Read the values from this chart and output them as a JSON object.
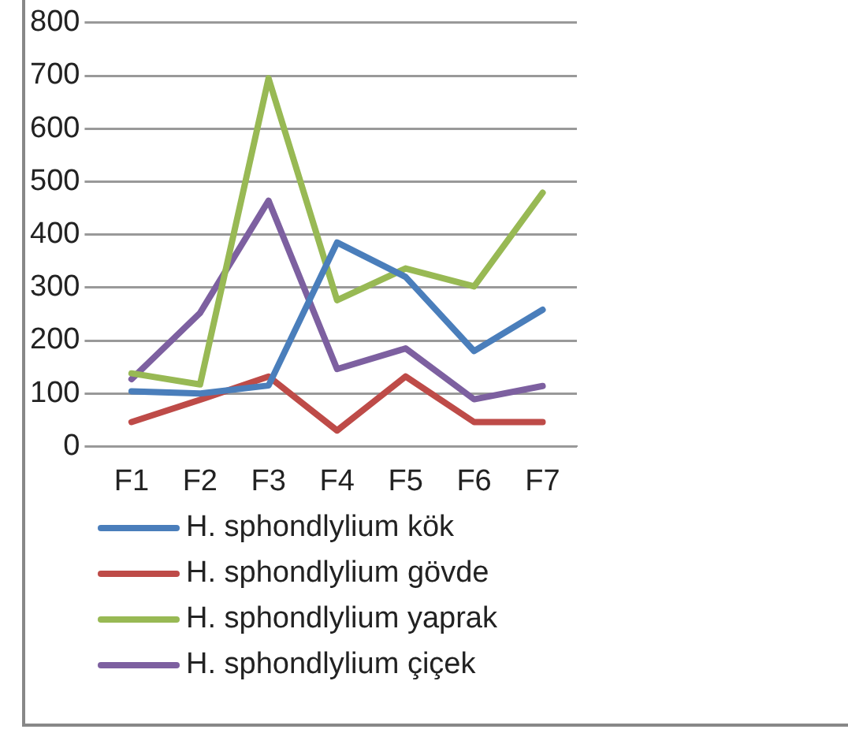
{
  "chart_data": {
    "type": "line",
    "categories": [
      "F1",
      "F2",
      "F3",
      "F4",
      "F5",
      "F6",
      "F7"
    ],
    "series": [
      {
        "name": "H. sphondlylium kök",
        "color": "#4a7ebb",
        "values": [
          104,
          100,
          115,
          385,
          320,
          180,
          258
        ]
      },
      {
        "name": "H. sphondlylium gövde",
        "color": "#be4b48",
        "values": [
          46,
          88,
          132,
          30,
          132,
          46,
          46
        ]
      },
      {
        "name": "H. sphondlylium yaprak",
        "color": "#98b954",
        "values": [
          138,
          117,
          695,
          276,
          336,
          302,
          479
        ]
      },
      {
        "name": "H. sphondlylium çiçek",
        "color": "#7d60a0",
        "values": [
          127,
          252,
          464,
          146,
          185,
          89,
          114
        ]
      }
    ],
    "ylim": [
      0,
      800
    ],
    "yticks": [
      0,
      100,
      200,
      300,
      400,
      500,
      600,
      700,
      800
    ],
    "grid": "y",
    "legend": "bottom",
    "marker": "none",
    "line_style": "solid"
  }
}
